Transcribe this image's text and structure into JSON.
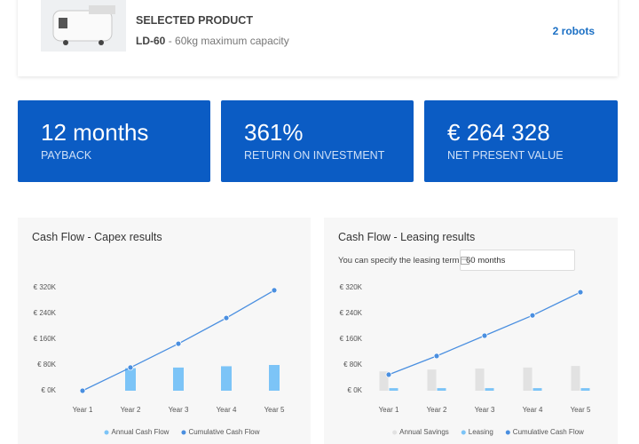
{
  "product": {
    "heading": "SELECTED PRODUCT",
    "model": "LD-60",
    "separator": "-",
    "description": "60kg maximum capacity",
    "quantity": "2 robots"
  },
  "kpis": [
    {
      "value": "12 months",
      "label": "PAYBACK"
    },
    {
      "value": "361%",
      "label": "RETURN ON INVESTMENT"
    },
    {
      "value": "€ 264 328",
      "label": "NET PRESENT VALUE"
    }
  ],
  "leasing_term": {
    "label": "You can specify the leasing term",
    "value": "60 months"
  },
  "chart_data": [
    {
      "type": "combo",
      "title": "Cash Flow - Capex results",
      "categories": [
        "Year 1",
        "Year 2",
        "Year 3",
        "Year 4",
        "Year 5"
      ],
      "ylim": [
        0,
        320000
      ],
      "yticks": [
        {
          "value": 0,
          "label": "€ 0K"
        },
        {
          "value": 80000,
          "label": "€ 80K"
        },
        {
          "value": 160000,
          "label": "€ 160K"
        },
        {
          "value": 240000,
          "label": "€ 240K"
        },
        {
          "value": 320000,
          "label": "€ 320K"
        }
      ],
      "series": [
        {
          "name": "Annual Cash Flow",
          "mark": "bar",
          "color": "#7cc4f7",
          "values": [
            0,
            70000,
            72000,
            76000,
            80000
          ]
        },
        {
          "name": "Cumulative Cash Flow",
          "mark": "line",
          "color": "#4a8fe0",
          "values": [
            0,
            72000,
            146000,
            226000,
            312000
          ]
        }
      ]
    },
    {
      "type": "combo",
      "title": "Cash Flow - Leasing results",
      "categories": [
        "Year 1",
        "Year 2",
        "Year 3",
        "Year 4",
        "Year 5"
      ],
      "ylim": [
        0,
        320000
      ],
      "yticks": [
        {
          "value": 0,
          "label": "€ 0K"
        },
        {
          "value": 80000,
          "label": "€ 80K"
        },
        {
          "value": 160000,
          "label": "€ 160K"
        },
        {
          "value": 240000,
          "label": "€ 240K"
        },
        {
          "value": 320000,
          "label": "€ 320K"
        }
      ],
      "series": [
        {
          "name": "Annual Savings",
          "mark": "bar",
          "color": "#e2e2e2",
          "values": [
            60000,
            66000,
            69000,
            72000,
            77000
          ]
        },
        {
          "name": "Leasing",
          "mark": "bar",
          "color": "#7cc4f7",
          "values": [
            8000,
            8000,
            8000,
            8000,
            8000
          ]
        },
        {
          "name": "Cumulative Cash Flow",
          "mark": "line",
          "color": "#4a8fe0",
          "values": [
            50000,
            108000,
            171000,
            234000,
            306000
          ]
        }
      ]
    }
  ]
}
